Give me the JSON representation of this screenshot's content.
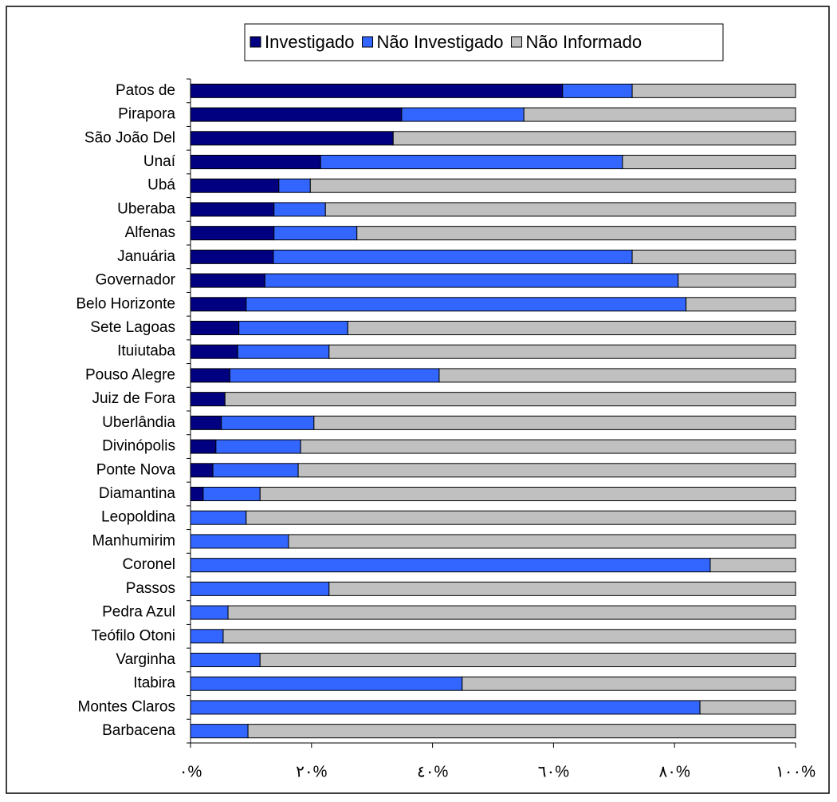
{
  "chart_data": {
    "type": "bar",
    "orientation": "horizontal",
    "stacked": true,
    "categories": [
      "Patos de",
      "Pirapora",
      "São João Del",
      "Unaí",
      "Ubá",
      "Uberaba",
      "Alfenas",
      "Januária",
      "Governador",
      "Belo Horizonte",
      "Sete Lagoas",
      "Ituiutaba",
      "Pouso Alegre",
      "Juiz de Fora",
      "Uberlândia",
      "Divinópolis",
      "Ponte Nova",
      "Diamantina",
      "Leopoldina",
      "Manhumirim",
      "Coronel",
      "Passos",
      "Pedra Azul",
      "Teófilo Otoni",
      "Varginha",
      "Itabira",
      "Montes Claros",
      "Barbacena"
    ],
    "series": [
      {
        "name": "Investigado",
        "color": "#000080",
        "values": [
          61.5,
          34.9,
          33.5,
          21.5,
          14.6,
          13.8,
          13.8,
          13.7,
          12.3,
          9.2,
          8.0,
          7.8,
          6.5,
          5.7,
          5.1,
          4.2,
          3.7,
          2.1,
          0,
          0,
          0,
          0,
          0,
          0,
          0,
          0,
          0,
          0
        ]
      },
      {
        "name": "Não Investigado",
        "color": "#3366ff",
        "values": [
          11.5,
          20.2,
          0,
          49.9,
          5.2,
          8.5,
          13.7,
          59.3,
          68.3,
          72.7,
          18.0,
          15.1,
          34.6,
          0,
          15.3,
          14.0,
          14.1,
          9.4,
          9.2,
          16.2,
          85.9,
          22.9,
          6.2,
          5.4,
          11.5,
          44.9,
          84.2,
          9.5
        ]
      },
      {
        "name": "Não Informado",
        "color": "#c0c0c0",
        "values": [
          27.0,
          44.9,
          66.5,
          28.6,
          80.2,
          77.7,
          72.5,
          27.0,
          19.4,
          18.1,
          74.0,
          77.1,
          58.9,
          94.3,
          79.6,
          81.8,
          82.2,
          88.5,
          90.8,
          83.8,
          14.1,
          77.1,
          93.8,
          94.6,
          88.5,
          55.1,
          15.8,
          90.5
        ]
      }
    ],
    "xlim": [
      0,
      100
    ],
    "xticks": [
      {
        "value": 0,
        "label": "٠%"
      },
      {
        "value": 20,
        "label": "٢٠%"
      },
      {
        "value": 40,
        "label": "٤٠%"
      },
      {
        "value": 60,
        "label": "٦٠%"
      },
      {
        "value": 80,
        "label": "٨٠%"
      },
      {
        "value": 100,
        "label": "١٠٠%"
      }
    ],
    "legend": "top"
  }
}
